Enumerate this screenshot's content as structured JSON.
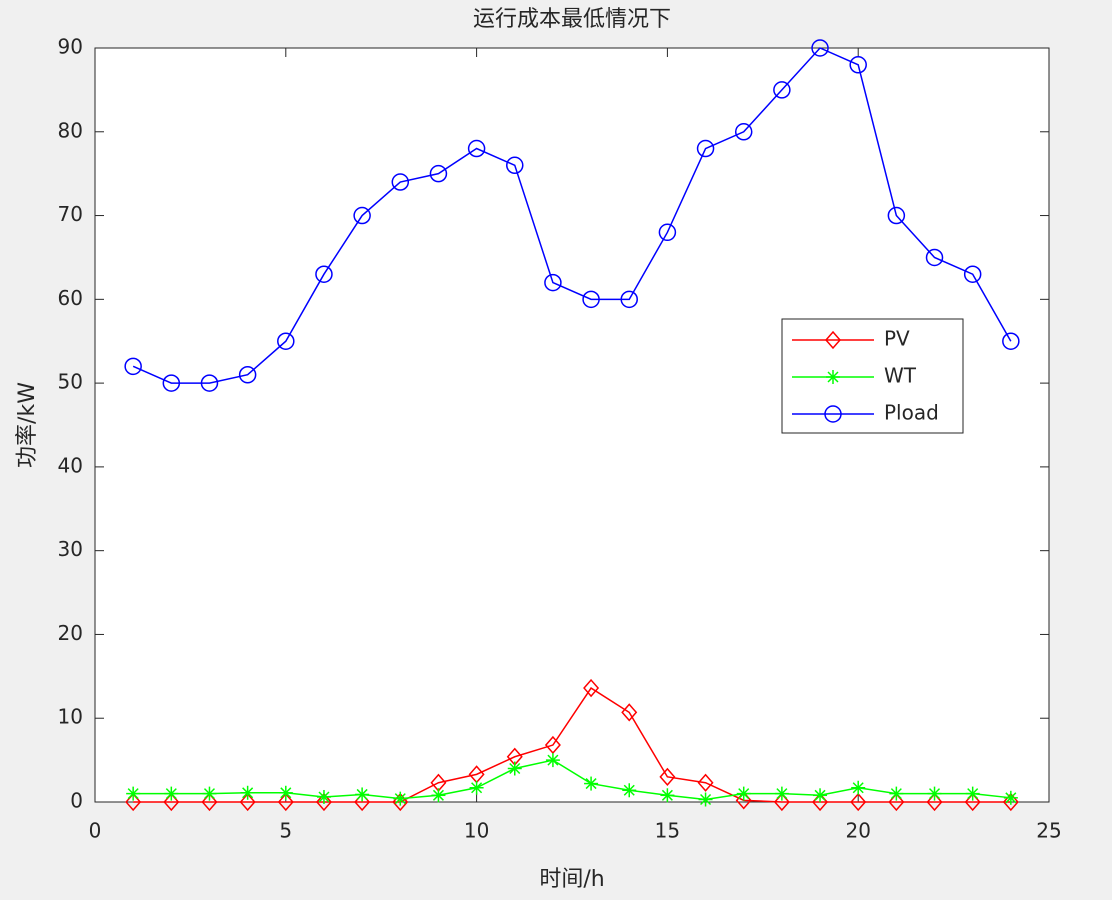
{
  "chart_data": {
    "type": "line",
    "title": "运行成本最低情况下",
    "xlabel": "时间/h",
    "ylabel": "功率/kW",
    "x": [
      1,
      2,
      3,
      4,
      5,
      6,
      7,
      8,
      9,
      10,
      11,
      12,
      13,
      14,
      15,
      16,
      17,
      18,
      19,
      20,
      21,
      22,
      23,
      24
    ],
    "series": [
      {
        "name": "PV",
        "color": "#ff0000",
        "marker": "diamond",
        "values": [
          0,
          0,
          0,
          0,
          0,
          0,
          0,
          0,
          2.3,
          3.3,
          5.4,
          6.8,
          13.6,
          10.7,
          3.0,
          2.3,
          0.2,
          0,
          0,
          0,
          0,
          0,
          0,
          0
        ]
      },
      {
        "name": "WT",
        "color": "#00ff00",
        "marker": "asterisk",
        "values": [
          1,
          1,
          1,
          1.1,
          1.1,
          0.6,
          0.9,
          0.4,
          0.8,
          1.7,
          4,
          5,
          2.2,
          1.4,
          0.8,
          0.3,
          1,
          1,
          0.8,
          1.7,
          1,
          1,
          1,
          0.5
        ]
      },
      {
        "name": "Pload",
        "color": "#0000ff",
        "marker": "circle",
        "values": [
          52,
          50,
          50,
          51,
          55,
          63,
          70,
          74,
          75,
          78,
          76,
          62,
          60,
          60,
          68,
          78,
          80,
          85,
          90,
          88,
          70,
          65,
          63,
          55
        ]
      }
    ],
    "xlim": [
      0,
      25
    ],
    "xticks": [
      0,
      5,
      10,
      15,
      20,
      25
    ],
    "ylim": [
      0,
      90
    ],
    "yticks": [
      0,
      10,
      20,
      30,
      40,
      50,
      60,
      70,
      80,
      90
    ],
    "legend_position": "east"
  }
}
